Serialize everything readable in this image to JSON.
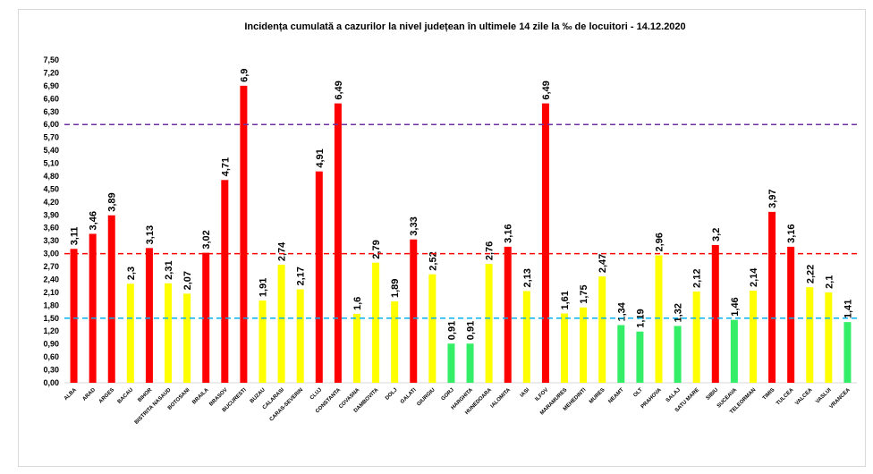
{
  "chart_data": {
    "type": "bar",
    "title": "Incidența cumulată a cazurilor la nivel județean în ultimele 14 zile   la ‰ de locuitori  - 14.12.2020",
    "xlabel": "",
    "ylabel": "",
    "ylim": [
      0,
      7.5
    ],
    "ytick_step": 0.3,
    "grid": false,
    "categories": [
      "ALBA",
      "ARAD",
      "ARGES",
      "BACAU",
      "BIHOR",
      "BISTRITA NASAUD",
      "BOTOSANI",
      "BRAILA",
      "BRASOV",
      "BUCURESTI",
      "BUZAU",
      "CALARASI",
      "CARAS-SEVERIN",
      "CLUJ",
      "CONSTANTA",
      "COVASNA",
      "DAMBOVITA",
      "DOLJ",
      "GALATI",
      "GIURGIU",
      "GORJ",
      "HARGHITA",
      "HUNEDOARA",
      "IALOMITA",
      "IASI",
      "ILFOV",
      "MARAMURES",
      "MEHEDINTI",
      "MURES",
      "NEAMT",
      "OLT",
      "PRAHOVA",
      "SALAJ",
      "SATU MARE",
      "SIBIU",
      "SUCEAVA",
      "TELEORMAN",
      "TIMIS",
      "TULCEA",
      "VALCEA",
      "VASLUI",
      "VRANCEA"
    ],
    "values": [
      3.11,
      3.46,
      3.89,
      2.3,
      3.13,
      2.31,
      2.07,
      3.02,
      4.71,
      6.9,
      1.91,
      2.74,
      2.17,
      4.91,
      6.49,
      1.6,
      2.79,
      1.89,
      3.33,
      2.52,
      0.91,
      0.91,
      2.76,
      3.16,
      2.13,
      6.49,
      1.61,
      1.75,
      2.47,
      1.34,
      1.19,
      2.96,
      1.32,
      2.12,
      3.2,
      1.46,
      2.14,
      3.97,
      3.16,
      2.22,
      2.1,
      1.41
    ],
    "thresholds": [
      {
        "value": 6.0,
        "color": "#7030a0"
      },
      {
        "value": 3.0,
        "color": "#ff0000"
      },
      {
        "value": 1.5,
        "color": "#00b0f0"
      }
    ],
    "colors": {
      "high": "#ff0000",
      "medium": "#ffff00",
      "low": "#33ee66"
    }
  }
}
